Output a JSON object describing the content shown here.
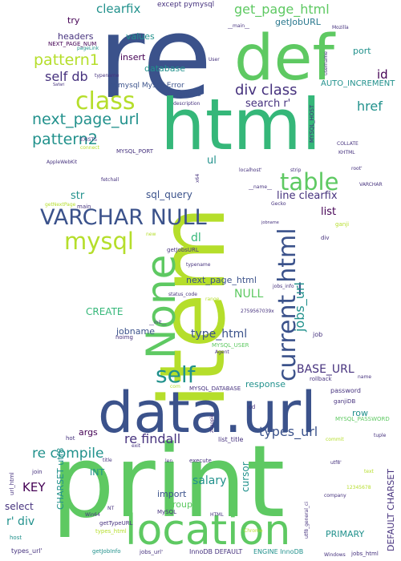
{
  "palette": {
    "navy": "#3b528b",
    "indigo": "#46327e",
    "purple": "#440154",
    "teal": "#21918c",
    "teal2": "#2a788e",
    "green": "#5ec962",
    "green2": "#35b779",
    "lime": "#b5de2b",
    "aqua": "#1fa187"
  },
  "words": {
    "re": "re",
    "def": "def",
    "html": "html",
    "item": "item",
    "print": "print",
    "data_url": "data.url",
    "location": "location",
    "none": "None",
    "current_html": "current_html",
    "varchar_null": "VARCHAR NULL",
    "class": "class",
    "table": "table",
    "mysql": "mysql",
    "self": "self",
    "pattern1": "pattern1",
    "pattern2": "pattern2",
    "next_page_url": "next_page_url",
    "div_class": "div class",
    "href": "href",
    "re_findall": "re findall",
    "re_compile": "re compile",
    "jobs_url": "jobs_url",
    "types_url": "types_url",
    "base_url": "BASE_URL",
    "sql_query": "sql_query",
    "line_clearfix": "line clearfix",
    "get_page_html": "get_page_html",
    "clearfix_top": "clearfix",
    "clearfix_mid": "clearfix",
    "getjoburl": "getJobURL",
    "except_pymysql": "except pymysql",
    "try": "try",
    "headers": "headers",
    "next_page_num": "NEXT_PAGE_NUM",
    "values": "values",
    "insert": "insert",
    "database": "database",
    "self_db": "self db",
    "pymysql_error": "pymysql MySQLError",
    "requests": "requests",
    "port": "port",
    "id": "id",
    "auto_increment": "AUTO_INCREMENT",
    "search_r": "search r'",
    "str": "str",
    "ul": "ul",
    "dl": "dl",
    "list": "list",
    "return": "return",
    "next_page_html": "next_page_html",
    "null": "NULL",
    "create": "CREATE",
    "jobname": "jobname",
    "type_html": "type_html",
    "row": "row",
    "response": "response",
    "password": "password",
    "args": "args",
    "salary": "salary",
    "group": "group",
    "import": "import",
    "cursor": "cursor",
    "key": "KEY",
    "int": "INT",
    "charset_utf8": "CHARSET utf8",
    "select": "select",
    "r_div": "r' div",
    "primary": "PRIMARY",
    "default_charset": "DEFAULT CHARSET",
    "engine_innodb": "ENGINE InnoDB",
    "innodb_default": "InnoDB DEFAULT",
    "jobs_url_q": "jobs_url'",
    "types_url_q": "types_url'",
    "getjobinfo": "getJobInfo",
    "types_html": "types_html",
    "gettypeurl": "getTypeURL",
    "mysql_port": "MYSQL_PORT",
    "mysql_host": "MYSQL_HOST",
    "mysql_user": "MYSQL_USER",
    "mysql_database": "MYSQL_DATABASE",
    "mysql_password": "MYSQL_PASSWORD",
    "ganjidb": "ganjiDB",
    "ganji": "ganji",
    "main": "main",
    "getnextpage": "getNextPage",
    "list_title": "list_title",
    "execute": "execute",
    "join": "join",
    "host": "host",
    "hot": "hot",
    "exit": "exit",
    "url_html": "url_html",
    "jobs_info": "jobs_info",
    "status_code": "status_code",
    "range": "range",
    "rollback": "rollback",
    "commit": "commit",
    "tuple": "tuple",
    "name": "name",
    "job": "job",
    "text": "text",
    "utf8_q": "utf8'",
    "company": "company",
    "username": "username",
    "user": "User",
    "mozilla": "Mozilla",
    "pagelink": "pageLink",
    "typename": "typename",
    "description": "description",
    "safari": "Safari",
    "applewebkit": "AppleWebKit",
    "connect": "connect",
    "exists": "EXISTS",
    "collate": "COLLATE",
    "khtml": "KHTML",
    "localhost": "localhost'",
    "strip": "strip",
    "root": "root'",
    "varchar": "VARCHAR",
    "gecko": "Gecko",
    "jobname_sm": "jobname",
    "new": "new",
    "fetchall": "fetchall",
    "x64": "x64",
    "getjobsurl": "getJobsURL",
    "typename2": "typename",
    "init": "__init__",
    "main2": "__main__",
    "name2": "__name__",
    "agent": "Agent",
    "noimg": "noimg",
    "win64": "Win64",
    "nt": "NT",
    "chrome": "Chrome",
    "windows": "Windows",
    "jobs_html": "jobs_html",
    "utf8_general_ci": "utf8_general_ci",
    "div": "div",
    "cd": "cd",
    "len": "len",
    "title": "title",
    "com": "com",
    "zhaopin": "zhaopin",
    "num": "12345678",
    "mysql_cn": "MySQL",
    "error_code": "2759567039x",
    "html_cn": "HTML"
  }
}
